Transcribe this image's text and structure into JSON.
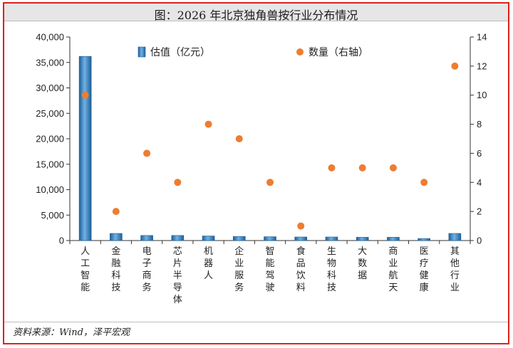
{
  "title": "图：2026 年北京独角兽按行业分布情况",
  "source": "资料来源：Wind，泽平宏观",
  "colors": {
    "bar": "#3a86c4",
    "bar_dark": "#1f5f96",
    "dot": "#ed7d31",
    "border": "#e0201b"
  },
  "chart_data": {
    "type": "bar",
    "categories": [
      "人工智能",
      "金融科技",
      "电子商务",
      "芯片半导体",
      "机器人",
      "企业服务",
      "智能驾驶",
      "食品饮料",
      "生物科技",
      "大数据",
      "商业航天",
      "医疗健康",
      "其他行业"
    ],
    "series": [
      {
        "name": "估值（亿元）",
        "type": "bar",
        "axis": "left",
        "values": [
          36200,
          1400,
          1000,
          1000,
          900,
          800,
          750,
          700,
          700,
          650,
          650,
          400,
          1400
        ]
      },
      {
        "name": "数量（右轴）",
        "type": "scatter",
        "axis": "right",
        "values": [
          10,
          2,
          6,
          4,
          8,
          7,
          4,
          1,
          5,
          5,
          5,
          4,
          12
        ]
      }
    ],
    "ylim": [
      0,
      40000
    ],
    "y_ticks": [
      0,
      5000,
      10000,
      15000,
      20000,
      25000,
      30000,
      35000,
      40000
    ],
    "y_tick_labels": [
      "0",
      "5,000",
      "10,000",
      "15,000",
      "20,000",
      "25,000",
      "30,000",
      "35,000",
      "40,000"
    ],
    "y2lim": [
      0,
      14
    ],
    "y2_ticks": [
      0,
      2,
      4,
      6,
      8,
      10,
      12,
      14
    ],
    "legend_position": "top-center",
    "grid": false
  }
}
